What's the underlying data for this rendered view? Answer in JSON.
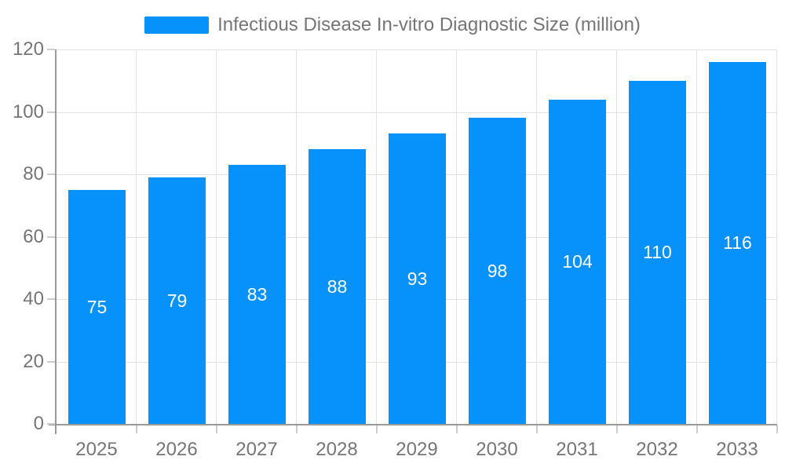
{
  "legend": {
    "label": "Infectious Disease In-vitro Diagnostic Size (million)"
  },
  "chart_data": {
    "type": "bar",
    "title": "Infectious Disease In-vitro Diagnostic Size (million)",
    "categories": [
      "2025",
      "2026",
      "2027",
      "2028",
      "2029",
      "2030",
      "2031",
      "2032",
      "2033"
    ],
    "values": [
      75,
      79,
      83,
      88,
      93,
      98,
      104,
      110,
      116
    ],
    "xlabel": "",
    "ylabel": "",
    "ylim": [
      0,
      120
    ],
    "yticks": [
      0,
      20,
      40,
      60,
      80,
      100,
      120
    ],
    "grid": true,
    "legend_position": "top-center",
    "colors": {
      "bar": "#0692fa",
      "value_label": "#ffffff",
      "axis_text": "#757575",
      "axis_line": "#999999",
      "gridline": "#e3e3e3",
      "tick": "#cccccc",
      "background": "#ffffff"
    }
  }
}
